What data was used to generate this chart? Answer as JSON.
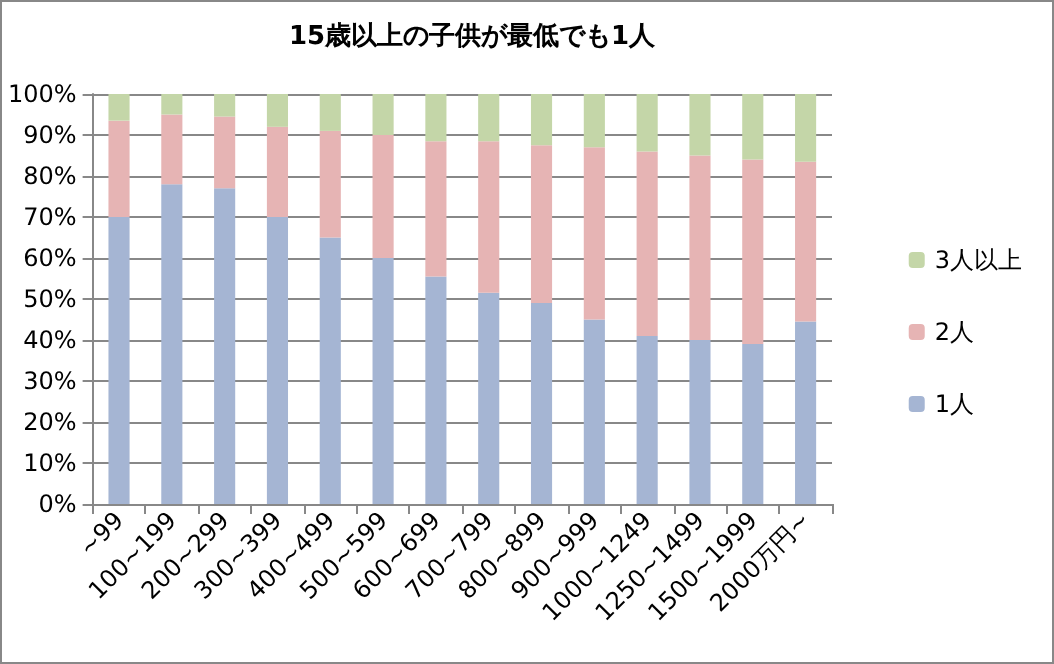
{
  "chart_data": {
    "type": "bar",
    "title": "15歳以上の子供が最低でも1人",
    "stacked": true,
    "categories": [
      "~99",
      "100~199",
      "200~299",
      "300~399",
      "400~499",
      "500~599",
      "600~699",
      "700~799",
      "800~899",
      "900~999",
      "1000~1249",
      "1250~1499",
      "1500~1999",
      "2000万円~"
    ],
    "series": [
      {
        "name": "1人",
        "color": "#a5b5d3",
        "values": [
          70,
          78,
          77,
          70,
          65,
          60,
          55.5,
          51.5,
          49,
          45,
          41,
          40,
          39,
          44.5
        ]
      },
      {
        "name": "2人",
        "color": "#e6b4b4",
        "values": [
          23.5,
          17,
          17.5,
          22,
          26,
          30,
          33,
          37,
          38.5,
          42,
          45,
          45,
          45,
          39
        ]
      },
      {
        "name": "3人以上",
        "color": "#c4d6a8",
        "values": [
          6.5,
          5,
          5.5,
          8,
          9,
          10,
          11.5,
          11.5,
          12.5,
          13,
          14,
          15,
          16,
          16.5
        ]
      }
    ],
    "ylim": [
      0,
      100
    ],
    "yticks": [
      {
        "value": 0,
        "label": "0%"
      },
      {
        "value": 10,
        "label": "10%"
      },
      {
        "value": 20,
        "label": "20%"
      },
      {
        "value": 30,
        "label": "30%"
      },
      {
        "value": 40,
        "label": "40%"
      },
      {
        "value": 50,
        "label": "50%"
      },
      {
        "value": 60,
        "label": "60%"
      },
      {
        "value": 70,
        "label": "70%"
      },
      {
        "value": 80,
        "label": "80%"
      },
      {
        "value": 90,
        "label": "90%"
      },
      {
        "value": 100,
        "label": "100%"
      }
    ],
    "grid": "y",
    "legend": "right"
  }
}
